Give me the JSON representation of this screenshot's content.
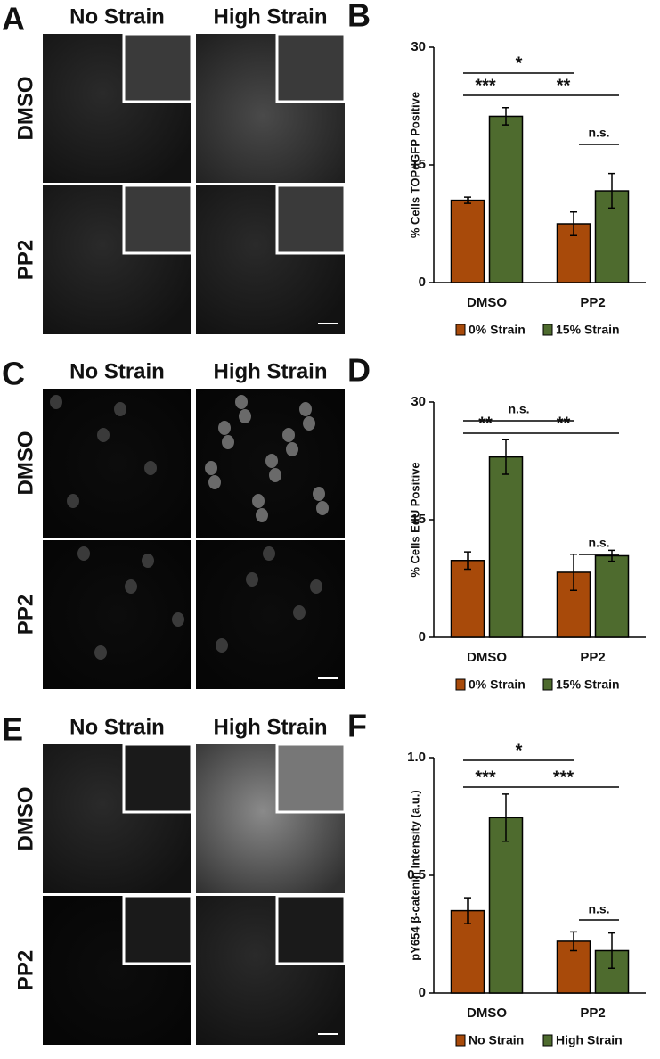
{
  "panels": [
    {
      "letter": "A",
      "columns": [
        "No Strain",
        "High Strain"
      ],
      "rows": [
        "DMSO",
        "PP2"
      ]
    },
    {
      "letter": "C",
      "columns": [
        "No Strain",
        "High Strain"
      ],
      "rows": [
        "DMSO",
        "PP2"
      ]
    },
    {
      "letter": "E",
      "columns": [
        "No Strain",
        "High Strain"
      ],
      "rows": [
        "DMSO",
        "PP2"
      ]
    }
  ],
  "chart_data": [
    {
      "type": "bar",
      "letter": "B",
      "ylabel": "% Cells TOPdGFP Positive",
      "categories": [
        "DMSO",
        "PP2"
      ],
      "series": [
        {
          "name": "0% Strain",
          "color": "#a84a0a",
          "values": [
            10.5,
            7.5
          ],
          "errors": [
            0.4,
            1.5
          ]
        },
        {
          "name": "15% Strain",
          "color": "#4e6b2e",
          "values": [
            21.2,
            11.7
          ],
          "errors": [
            1.1,
            2.2
          ]
        }
      ],
      "ylim": [
        0,
        30
      ],
      "yticks": [
        0,
        15,
        30
      ],
      "annotations": [
        "*",
        "***",
        "**",
        "n.s."
      ]
    },
    {
      "type": "bar",
      "letter": "D",
      "ylabel": "% Cells EdU Positive",
      "categories": [
        "DMSO",
        "PP2"
      ],
      "series": [
        {
          "name": "0% Strain",
          "color": "#a84a0a",
          "values": [
            9.8,
            8.3
          ],
          "errors": [
            1.1,
            2.3
          ]
        },
        {
          "name": "15% Strain",
          "color": "#4e6b2e",
          "values": [
            23,
            10.4
          ],
          "errors": [
            2.2,
            0.7
          ]
        }
      ],
      "ylim": [
        0,
        30
      ],
      "yticks": [
        0,
        15,
        30
      ],
      "annotations": [
        "n.s.",
        "**",
        "**",
        "n.s."
      ]
    },
    {
      "type": "bar",
      "letter": "F",
      "ylabel": "pY654 β-catenin Intensity (a.u.)",
      "categories": [
        "DMSO",
        "PP2"
      ],
      "series": [
        {
          "name": "No Strain",
          "color": "#a84a0a",
          "values": [
            0.35,
            0.22
          ],
          "errors": [
            0.055,
            0.04
          ]
        },
        {
          "name": "High Strain",
          "color": "#4e6b2e",
          "values": [
            0.745,
            0.18
          ],
          "errors": [
            0.1,
            0.075
          ]
        }
      ],
      "ylim": [
        0,
        1
      ],
      "yticks": [
        0,
        0.5,
        {
          "value": 1,
          "label": "1.0"
        }
      ],
      "annotations": [
        "*",
        "***",
        "***",
        "n.s."
      ]
    }
  ]
}
